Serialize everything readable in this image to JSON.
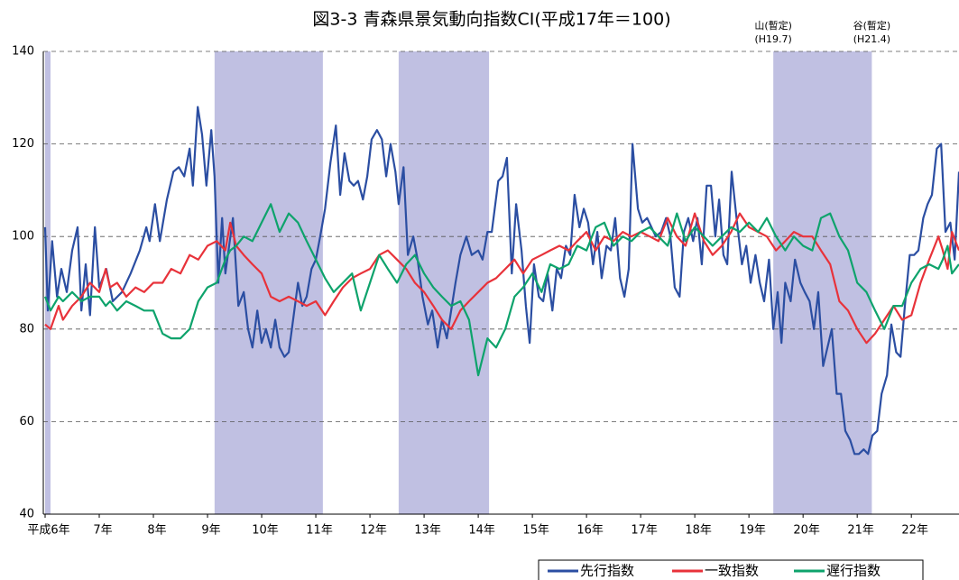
{
  "chart_data": {
    "type": "line",
    "title": "図3-3 青森県景気動向指数CI(平成17年＝100)",
    "xlim": [
      6,
      22.88
    ],
    "xticks": [
      {
        "value": 6,
        "label": "平成6年"
      },
      {
        "value": 7,
        "label": "7年"
      },
      {
        "value": 8,
        "label": "8年"
      },
      {
        "value": 9,
        "label": "9年"
      },
      {
        "value": 10,
        "label": "10年"
      },
      {
        "value": 11,
        "label": "11年"
      },
      {
        "value": 12,
        "label": "12年"
      },
      {
        "value": 13,
        "label": "13年"
      },
      {
        "value": 14,
        "label": "14年"
      },
      {
        "value": 15,
        "label": "15年"
      },
      {
        "value": 16,
        "label": "16年"
      },
      {
        "value": 17,
        "label": "17年"
      },
      {
        "value": 18,
        "label": "18年"
      },
      {
        "value": 19,
        "label": "19年"
      },
      {
        "value": 20,
        "label": "20年"
      },
      {
        "value": 21,
        "label": "21年"
      },
      {
        "value": 22,
        "label": "22年"
      }
    ],
    "ylim": [
      40,
      140
    ],
    "yticks": [
      40,
      60,
      80,
      100,
      120,
      140
    ],
    "grid": true,
    "shade_color": "#c0c0e2",
    "shaded_periods": [
      [
        6.0,
        6.1
      ],
      [
        9.13,
        11.13
      ],
      [
        12.53,
        14.2
      ],
      [
        19.45,
        21.27
      ]
    ],
    "annotations": [
      {
        "label": "山(暫定)",
        "date": "(H19.7)"
      },
      {
        "label": "谷(暫定)",
        "date": "(H21.4)"
      }
    ],
    "legend": "bottom-right",
    "series": [
      {
        "name": "先行指数",
        "color": "#2b4ea2",
        "x": [
          6.0,
          6.05,
          6.13,
          6.22,
          6.3,
          6.4,
          6.5,
          6.6,
          6.67,
          6.75,
          6.83,
          6.92,
          7.0,
          7.13,
          7.25,
          7.42,
          7.58,
          7.75,
          7.87,
          7.93,
          8.03,
          8.12,
          8.25,
          8.37,
          8.47,
          8.57,
          8.67,
          8.73,
          8.82,
          8.9,
          8.98,
          9.07,
          9.13,
          9.2,
          9.27,
          9.33,
          9.47,
          9.57,
          9.67,
          9.75,
          9.83,
          9.92,
          10.0,
          10.08,
          10.17,
          10.25,
          10.33,
          10.42,
          10.5,
          10.58,
          10.67,
          10.75,
          10.83,
          10.92,
          11.0,
          11.08,
          11.17,
          11.27,
          11.37,
          11.45,
          11.53,
          11.62,
          11.7,
          11.78,
          11.87,
          11.95,
          12.03,
          12.13,
          12.22,
          12.3,
          12.38,
          12.47,
          12.53,
          12.62,
          12.7,
          12.8,
          12.88,
          12.97,
          13.07,
          13.15,
          13.25,
          13.33,
          13.42,
          13.5,
          13.58,
          13.67,
          13.78,
          13.88,
          14.0,
          14.08,
          14.17,
          14.25,
          14.37,
          14.45,
          14.53,
          14.62,
          14.7,
          14.8,
          14.88,
          14.95,
          15.03,
          15.12,
          15.2,
          15.28,
          15.37,
          15.45,
          15.53,
          15.62,
          15.7,
          15.78,
          15.87,
          15.95,
          16.03,
          16.12,
          16.2,
          16.28,
          16.37,
          16.45,
          16.53,
          16.62,
          16.7,
          16.78,
          16.85,
          16.95,
          17.03,
          17.12,
          17.2,
          17.28,
          17.38,
          17.47,
          17.55,
          17.63,
          17.72,
          17.8,
          17.88,
          17.97,
          18.05,
          18.13,
          18.22,
          18.3,
          18.38,
          18.45,
          18.53,
          18.6,
          18.68,
          18.77,
          18.87,
          18.95,
          19.03,
          19.12,
          19.2,
          19.28,
          19.37,
          19.45,
          19.53,
          19.6,
          19.67,
          19.77,
          19.85,
          19.95,
          20.03,
          20.12,
          20.2,
          20.28,
          20.37,
          20.45,
          20.53,
          20.62,
          20.7,
          20.78,
          20.87,
          20.95,
          21.03,
          21.12,
          21.2,
          21.28,
          21.37,
          21.45,
          21.55,
          21.63,
          21.72,
          21.8,
          21.88,
          21.97,
          22.05,
          22.13,
          22.22,
          22.3,
          22.38,
          22.47,
          22.55,
          22.63,
          22.72,
          22.8,
          22.88
        ],
        "values": [
          102,
          84,
          99,
          87,
          93,
          88,
          97,
          102,
          84,
          94,
          83,
          102,
          89,
          93,
          86,
          88,
          92,
          97,
          102,
          99,
          107,
          99,
          108,
          114,
          115,
          113,
          119,
          111,
          128,
          122,
          111,
          123,
          113,
          90,
          104,
          92,
          104,
          85,
          88,
          80,
          76,
          84,
          77,
          80,
          76,
          82,
          76,
          74,
          75,
          82,
          90,
          85,
          87,
          93,
          95,
          100,
          106,
          116,
          124,
          109,
          118,
          112,
          111,
          112,
          108,
          113,
          121,
          123,
          121,
          113,
          120,
          114,
          107,
          115,
          96,
          100,
          95,
          87,
          81,
          84,
          76,
          82,
          78,
          84,
          90,
          96,
          100,
          96,
          97,
          95,
          101,
          101,
          112,
          113,
          117,
          92,
          107,
          97,
          85,
          77,
          94,
          87,
          86,
          92,
          84,
          93,
          91,
          98,
          96,
          109,
          102,
          106,
          103,
          94,
          101,
          91,
          98,
          97,
          104,
          91,
          87,
          93,
          120,
          106,
          103,
          104,
          102,
          100,
          101,
          104,
          100,
          89,
          87,
          101,
          104,
          99,
          104,
          94,
          111,
          111,
          100,
          108,
          96,
          94,
          114,
          104,
          94,
          98,
          90,
          96,
          90,
          86,
          95,
          80,
          88,
          77,
          90,
          86,
          95,
          90,
          88,
          86,
          80,
          88,
          72,
          76,
          80,
          66,
          66,
          58,
          56,
          53,
          53,
          54,
          53,
          57,
          58,
          66,
          70,
          81,
          75,
          74,
          85,
          96,
          96,
          97,
          104,
          107,
          109,
          119,
          120,
          101,
          103,
          95,
          114
        ]
      },
      {
        "name": "一致指数",
        "color": "#e8323a",
        "x": [
          6.0,
          6.1,
          6.25,
          6.33,
          6.5,
          6.67,
          6.83,
          7.0,
          7.12,
          7.2,
          7.33,
          7.5,
          7.67,
          7.83,
          8.0,
          8.17,
          8.33,
          8.5,
          8.67,
          8.83,
          9.0,
          9.17,
          9.33,
          9.42,
          9.53,
          9.67,
          9.83,
          10.0,
          10.17,
          10.33,
          10.5,
          10.67,
          10.83,
          11.0,
          11.17,
          11.33,
          11.5,
          11.67,
          11.83,
          12.0,
          12.17,
          12.33,
          12.5,
          12.67,
          12.83,
          13.0,
          13.17,
          13.33,
          13.5,
          13.67,
          13.83,
          14.0,
          14.17,
          14.33,
          14.5,
          14.67,
          14.83,
          15.0,
          15.17,
          15.33,
          15.5,
          15.67,
          15.83,
          16.0,
          16.17,
          16.33,
          16.5,
          16.67,
          16.83,
          17.0,
          17.17,
          17.33,
          17.5,
          17.67,
          17.83,
          18.0,
          18.17,
          18.33,
          18.5,
          18.67,
          18.83,
          19.0,
          19.17,
          19.33,
          19.5,
          19.67,
          19.83,
          20.0,
          20.17,
          20.33,
          20.5,
          20.67,
          20.83,
          21.0,
          21.17,
          21.33,
          21.5,
          21.67,
          21.83,
          22.0,
          22.17,
          22.33,
          22.5,
          22.58,
          22.67,
          22.75,
          22.88
        ],
        "values": [
          81,
          80,
          85,
          82,
          85,
          87,
          90,
          88,
          93,
          89,
          90,
          87,
          89,
          88,
          90,
          90,
          93,
          92,
          96,
          95,
          98,
          99,
          97,
          103,
          98,
          96,
          94,
          92,
          87,
          86,
          87,
          86,
          85,
          86,
          83,
          86,
          89,
          91,
          92,
          93,
          96,
          97,
          95,
          93,
          90,
          88,
          85,
          82,
          80,
          84,
          86,
          88,
          90,
          91,
          93,
          95,
          92,
          95,
          96,
          97,
          98,
          97,
          99,
          101,
          97,
          100,
          99,
          101,
          100,
          101,
          100,
          99,
          104,
          100,
          98,
          105,
          99,
          96,
          98,
          101,
          105,
          102,
          101,
          100,
          97,
          99,
          101,
          100,
          100,
          97,
          94,
          86,
          84,
          80,
          77,
          79,
          82,
          85,
          82,
          83,
          90,
          95,
          100,
          97,
          93,
          101,
          97
        ]
      },
      {
        "name": "遅行指数",
        "color": "#0ea36c",
        "x": [
          6.0,
          6.1,
          6.25,
          6.33,
          6.5,
          6.67,
          6.83,
          7.0,
          7.12,
          7.2,
          7.33,
          7.5,
          7.67,
          7.83,
          8.0,
          8.17,
          8.33,
          8.5,
          8.67,
          8.83,
          9.0,
          9.17,
          9.33,
          9.42,
          9.53,
          9.67,
          9.83,
          10.0,
          10.17,
          10.33,
          10.5,
          10.67,
          10.83,
          11.0,
          11.17,
          11.33,
          11.5,
          11.67,
          11.83,
          12.0,
          12.17,
          12.33,
          12.5,
          12.67,
          12.83,
          13.0,
          13.17,
          13.33,
          13.5,
          13.67,
          13.83,
          14.0,
          14.17,
          14.33,
          14.5,
          14.67,
          14.83,
          15.0,
          15.17,
          15.33,
          15.5,
          15.67,
          15.83,
          16.0,
          16.17,
          16.33,
          16.5,
          16.67,
          16.83,
          17.0,
          17.17,
          17.33,
          17.5,
          17.67,
          17.83,
          18.0,
          18.17,
          18.33,
          18.5,
          18.67,
          18.83,
          19.0,
          19.17,
          19.33,
          19.5,
          19.67,
          19.83,
          20.0,
          20.17,
          20.33,
          20.5,
          20.67,
          20.83,
          21.0,
          21.17,
          21.33,
          21.5,
          21.67,
          21.83,
          22.0,
          22.17,
          22.33,
          22.5,
          22.58,
          22.67,
          22.75,
          22.88
        ],
        "values": [
          87,
          84,
          87,
          86,
          88,
          86,
          87,
          87,
          85,
          86,
          84,
          86,
          85,
          84,
          84,
          79,
          78,
          78,
          80,
          86,
          89,
          90,
          95,
          97,
          98,
          100,
          99,
          103,
          107,
          101,
          105,
          103,
          99,
          95,
          91,
          88,
          90,
          92,
          84,
          90,
          96,
          93,
          90,
          94,
          96,
          92,
          89,
          87,
          85,
          86,
          82,
          70,
          78,
          76,
          80,
          87,
          89,
          92,
          88,
          94,
          93,
          94,
          98,
          97,
          102,
          103,
          98,
          100,
          99,
          101,
          102,
          100,
          98,
          105,
          99,
          102,
          100,
          98,
          100,
          102,
          101,
          103,
          101,
          104,
          100,
          97,
          100,
          98,
          97,
          104,
          105,
          100,
          97,
          90,
          88,
          84,
          80,
          85,
          85,
          90,
          93,
          94,
          93,
          95,
          98,
          92,
          94
        ]
      }
    ]
  }
}
